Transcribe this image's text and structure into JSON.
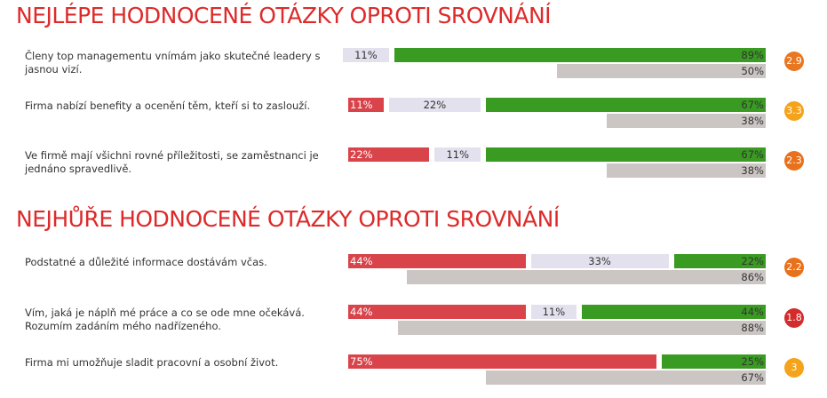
{
  "colors": {
    "title": "#dd2a2a",
    "negative": "#d9434a",
    "neutral": "#e4e1ee",
    "positive": "#3a9b22",
    "benchmark": "#cbc5c3"
  },
  "chart_data": [
    {
      "type": "bar",
      "title": "NEJLÉPE HODNOCENÉ OTÁZKY OPROTI SROVNÁNÍ",
      "rows": [
        {
          "question": "Členy top managementu vnímám jako skutečné leadery s jasnou vizí.",
          "negative": 0,
          "negative_label": "",
          "neutral": 11,
          "neutral_label": "11%",
          "positive": 89,
          "positive_label": "89%",
          "benchmark": 50,
          "benchmark_label": "50%",
          "score": "2.9",
          "score_color": "#e87722"
        },
        {
          "question": "Firma nabízí benefity a ocenění těm, kteří si to zaslouží.",
          "negative": 11,
          "negative_label": "11%",
          "neutral": 22,
          "neutral_label": "22%",
          "positive": 67,
          "positive_label": "67%",
          "benchmark": 38,
          "benchmark_label": "38%",
          "score": "3.3",
          "score_color": "#f5a31a"
        },
        {
          "question": "Ve firmě mají všichni rovné příležitosti, se zaměstnanci je jednáno spravedlivě.",
          "negative": 22,
          "negative_label": "22%",
          "neutral": 11,
          "neutral_label": "11%",
          "positive": 67,
          "positive_label": "67%",
          "benchmark": 38,
          "benchmark_label": "38%",
          "score": "2.3",
          "score_color": "#e8711c"
        }
      ]
    },
    {
      "type": "bar",
      "title": "NEJHŮŘE HODNOCENÉ OTÁZKY OPROTI SROVNÁNÍ",
      "rows": [
        {
          "question": "Podstatné a důležité informace dostávám včas.",
          "negative": 44,
          "negative_label": "44%",
          "neutral": 33,
          "neutral_label": "33%",
          "positive": 22,
          "positive_label": "22%",
          "benchmark": 86,
          "benchmark_label": "86%",
          "score": "2.2",
          "score_color": "#e8711c"
        },
        {
          "question": "Vím, jaká je náplň mé práce a co se ode mne očekává. Rozumím zadáním mého nadřízeného.",
          "negative": 44,
          "negative_label": "44%",
          "neutral": 11,
          "neutral_label": "11%",
          "positive": 44,
          "positive_label": "44%",
          "benchmark": 88,
          "benchmark_label": "88%",
          "score": "1.8",
          "score_color": "#d42b2b"
        },
        {
          "question": "Firma mi umožňuje sladit pracovní a osobní život.",
          "negative": 75,
          "negative_label": "75%",
          "neutral": 0,
          "neutral_label": "",
          "positive": 25,
          "positive_label": "25%",
          "benchmark": 67,
          "benchmark_label": "67%",
          "score": "3",
          "score_color": "#f5a31a"
        }
      ]
    }
  ]
}
